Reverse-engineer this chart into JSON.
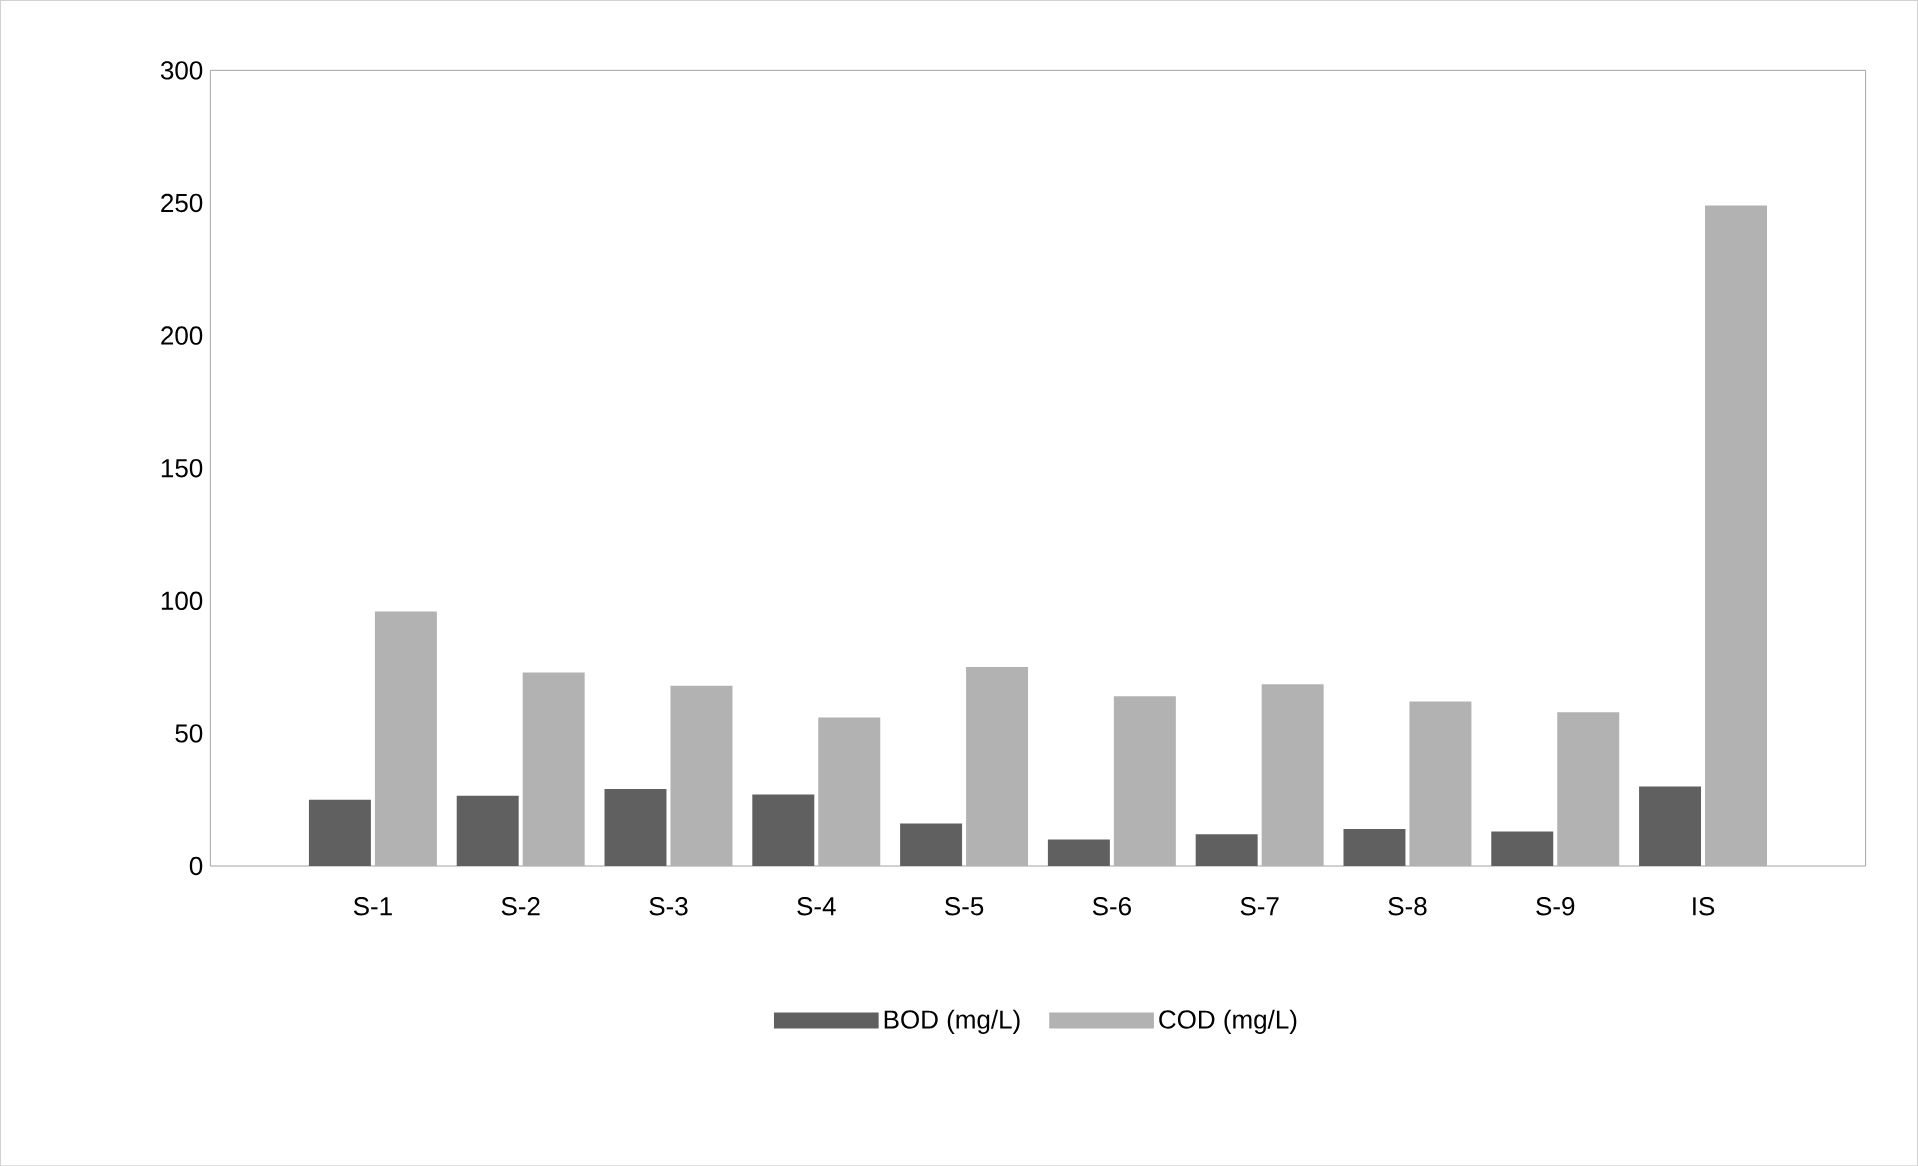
{
  "chart_data": {
    "type": "bar",
    "categories": [
      "S-1",
      "S-2",
      "S-3",
      "S-4",
      "S-5",
      "S-6",
      "S-7",
      "S-8",
      "S-9",
      "IS"
    ],
    "series": [
      {
        "name": "BOD (mg/L)",
        "color": "#606060",
        "values": [
          25,
          26.5,
          29,
          27,
          16,
          10,
          12,
          14,
          13,
          30
        ]
      },
      {
        "name": "COD (mg/L)",
        "color": "#b2b2b2",
        "values": [
          96,
          73,
          68,
          56,
          75,
          64,
          68.5,
          62,
          58,
          249
        ]
      }
    ],
    "ylim": [
      0,
      300
    ],
    "yticks": [
      0,
      50,
      100,
      150,
      200,
      250,
      300
    ],
    "grid": false,
    "legend": "bottom"
  }
}
